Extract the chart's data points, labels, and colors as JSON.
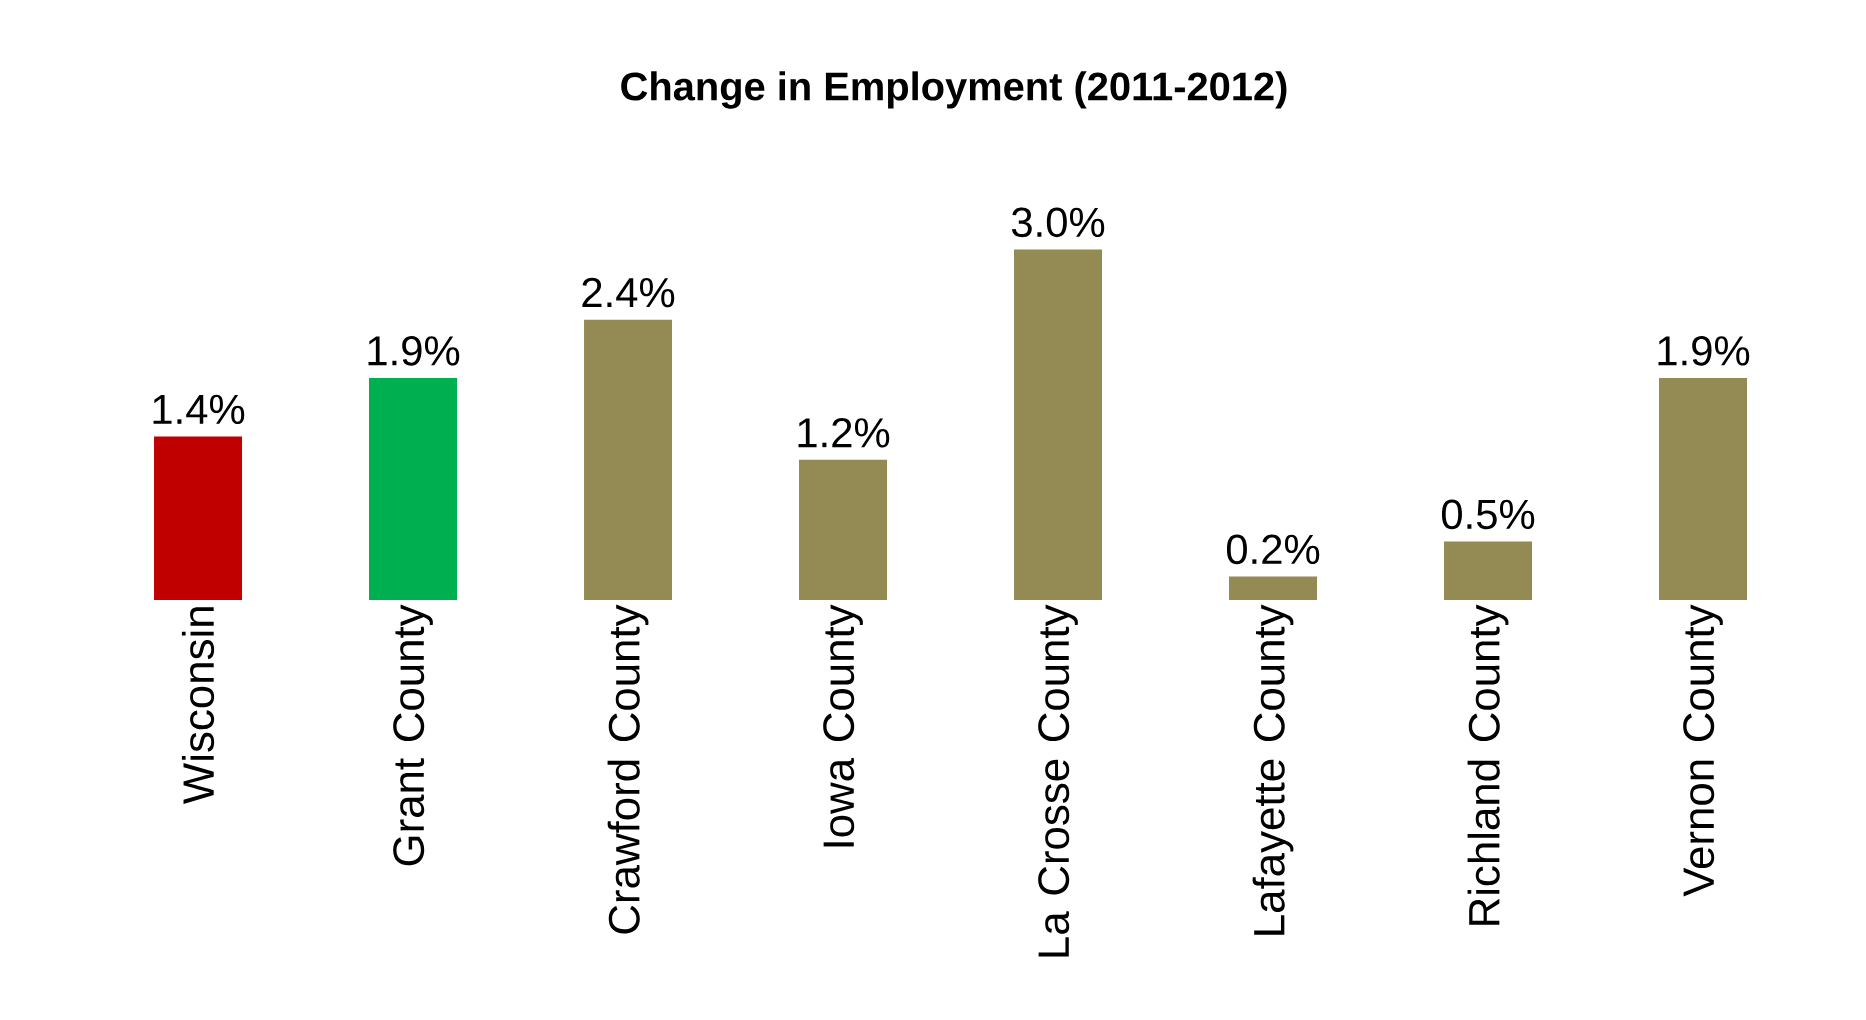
{
  "chart_data": {
    "type": "bar",
    "title": "Change in Employment (2011-2012)",
    "categories": [
      "Wisconsin",
      "Grant County",
      "Crawford County",
      "Iowa County",
      "La Crosse County",
      "Lafayette County",
      "Richland County",
      "Vernon County"
    ],
    "values": [
      1.4,
      1.9,
      2.4,
      1.2,
      3.0,
      0.2,
      0.5,
      1.9
    ],
    "value_labels": [
      "1.4%",
      "1.9%",
      "2.4%",
      "1.2%",
      "3.0%",
      "0.2%",
      "0.5%",
      "1.9%"
    ],
    "colors": [
      "#c00000",
      "#00b050",
      "#948a54",
      "#948a54",
      "#948a54",
      "#948a54",
      "#948a54",
      "#948a54"
    ]
  }
}
